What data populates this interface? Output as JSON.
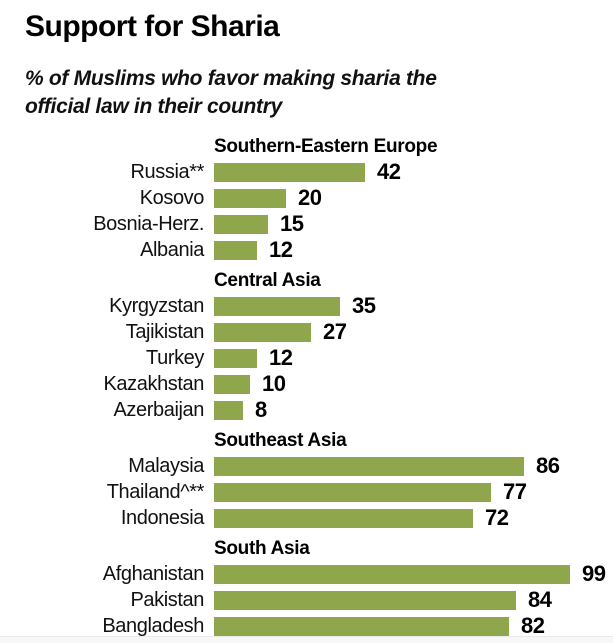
{
  "title": "Support for Sharia",
  "subtitle": "% of Muslims who favor making sharia the official law in their country",
  "colors": {
    "bar": "#8fa64c",
    "title_text": "#000000",
    "label_text": "#111111"
  },
  "chart_data": {
    "type": "bar",
    "orientation": "horizontal",
    "title": "Support for Sharia",
    "subtitle": "% of Muslims who favor making sharia the official law in their country",
    "unit": "percent",
    "xlim": [
      0,
      100
    ],
    "grid": false,
    "legend": false,
    "value_labels": "end-of-bar",
    "groups": [
      {
        "label": "Southern-Eastern Europe",
        "categories": [
          "Russia**",
          "Kosovo",
          "Bosnia-Herz.",
          "Albania"
        ],
        "values": [
          42,
          20,
          15,
          12
        ]
      },
      {
        "label": "Central Asia",
        "categories": [
          "Kyrgyzstan",
          "Tajikistan",
          "Turkey",
          "Kazakhstan",
          "Azerbaijan"
        ],
        "values": [
          35,
          27,
          12,
          10,
          8
        ]
      },
      {
        "label": "Southeast Asia",
        "categories": [
          "Malaysia",
          "Thailand^**",
          "Indonesia"
        ],
        "values": [
          86,
          77,
          72
        ]
      },
      {
        "label": "South Asia",
        "categories": [
          "Afghanistan",
          "Pakistan",
          "Bangladesh"
        ],
        "values": [
          99,
          84,
          82
        ]
      }
    ]
  }
}
